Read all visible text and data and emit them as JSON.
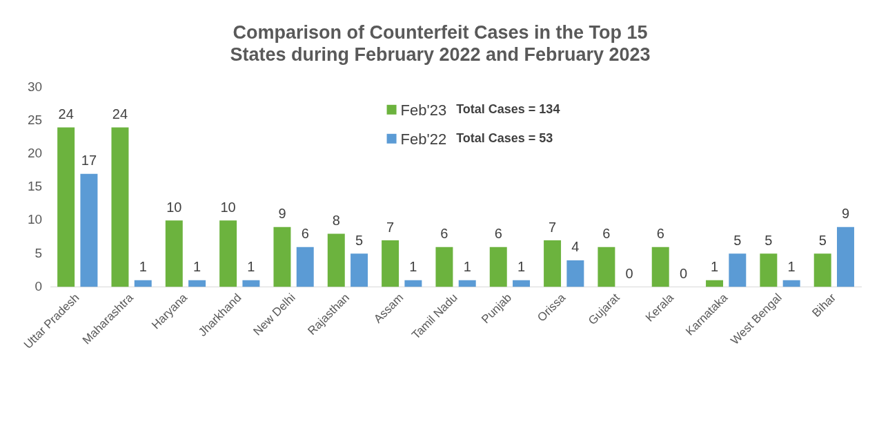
{
  "chart_data": {
    "type": "bar",
    "title": "Comparison of Counterfeit Cases in the Top 15 States during February 2022 and February 2023",
    "categories": [
      "Uttar Pradesh",
      "Maharashtra",
      "Haryana",
      "Jharkhand",
      "New Delhi",
      "Rajasthan",
      "Assam",
      "Tamil Nadu",
      "Punjab",
      "Orissa",
      "Gujarat",
      "Kerala",
      "Karnataka",
      "West Bengal",
      "Bihar"
    ],
    "series": [
      {
        "name": "Feb'23",
        "color": "#6cb33e",
        "values": [
          24,
          24,
          10,
          10,
          9,
          8,
          7,
          6,
          6,
          7,
          6,
          6,
          1,
          5,
          5
        ]
      },
      {
        "name": "Feb'22",
        "color": "#5b9bd5",
        "values": [
          17,
          1,
          1,
          1,
          6,
          5,
          1,
          1,
          1,
          4,
          0,
          0,
          5,
          1,
          9
        ]
      }
    ],
    "annotations": [
      "Total Cases = 134",
      "Total Cases = 53"
    ],
    "ylim": [
      0,
      30
    ],
    "yticks": [
      0,
      5,
      10,
      15,
      20,
      25,
      30
    ],
    "grid": false,
    "legend": "top",
    "data_labels": true
  }
}
